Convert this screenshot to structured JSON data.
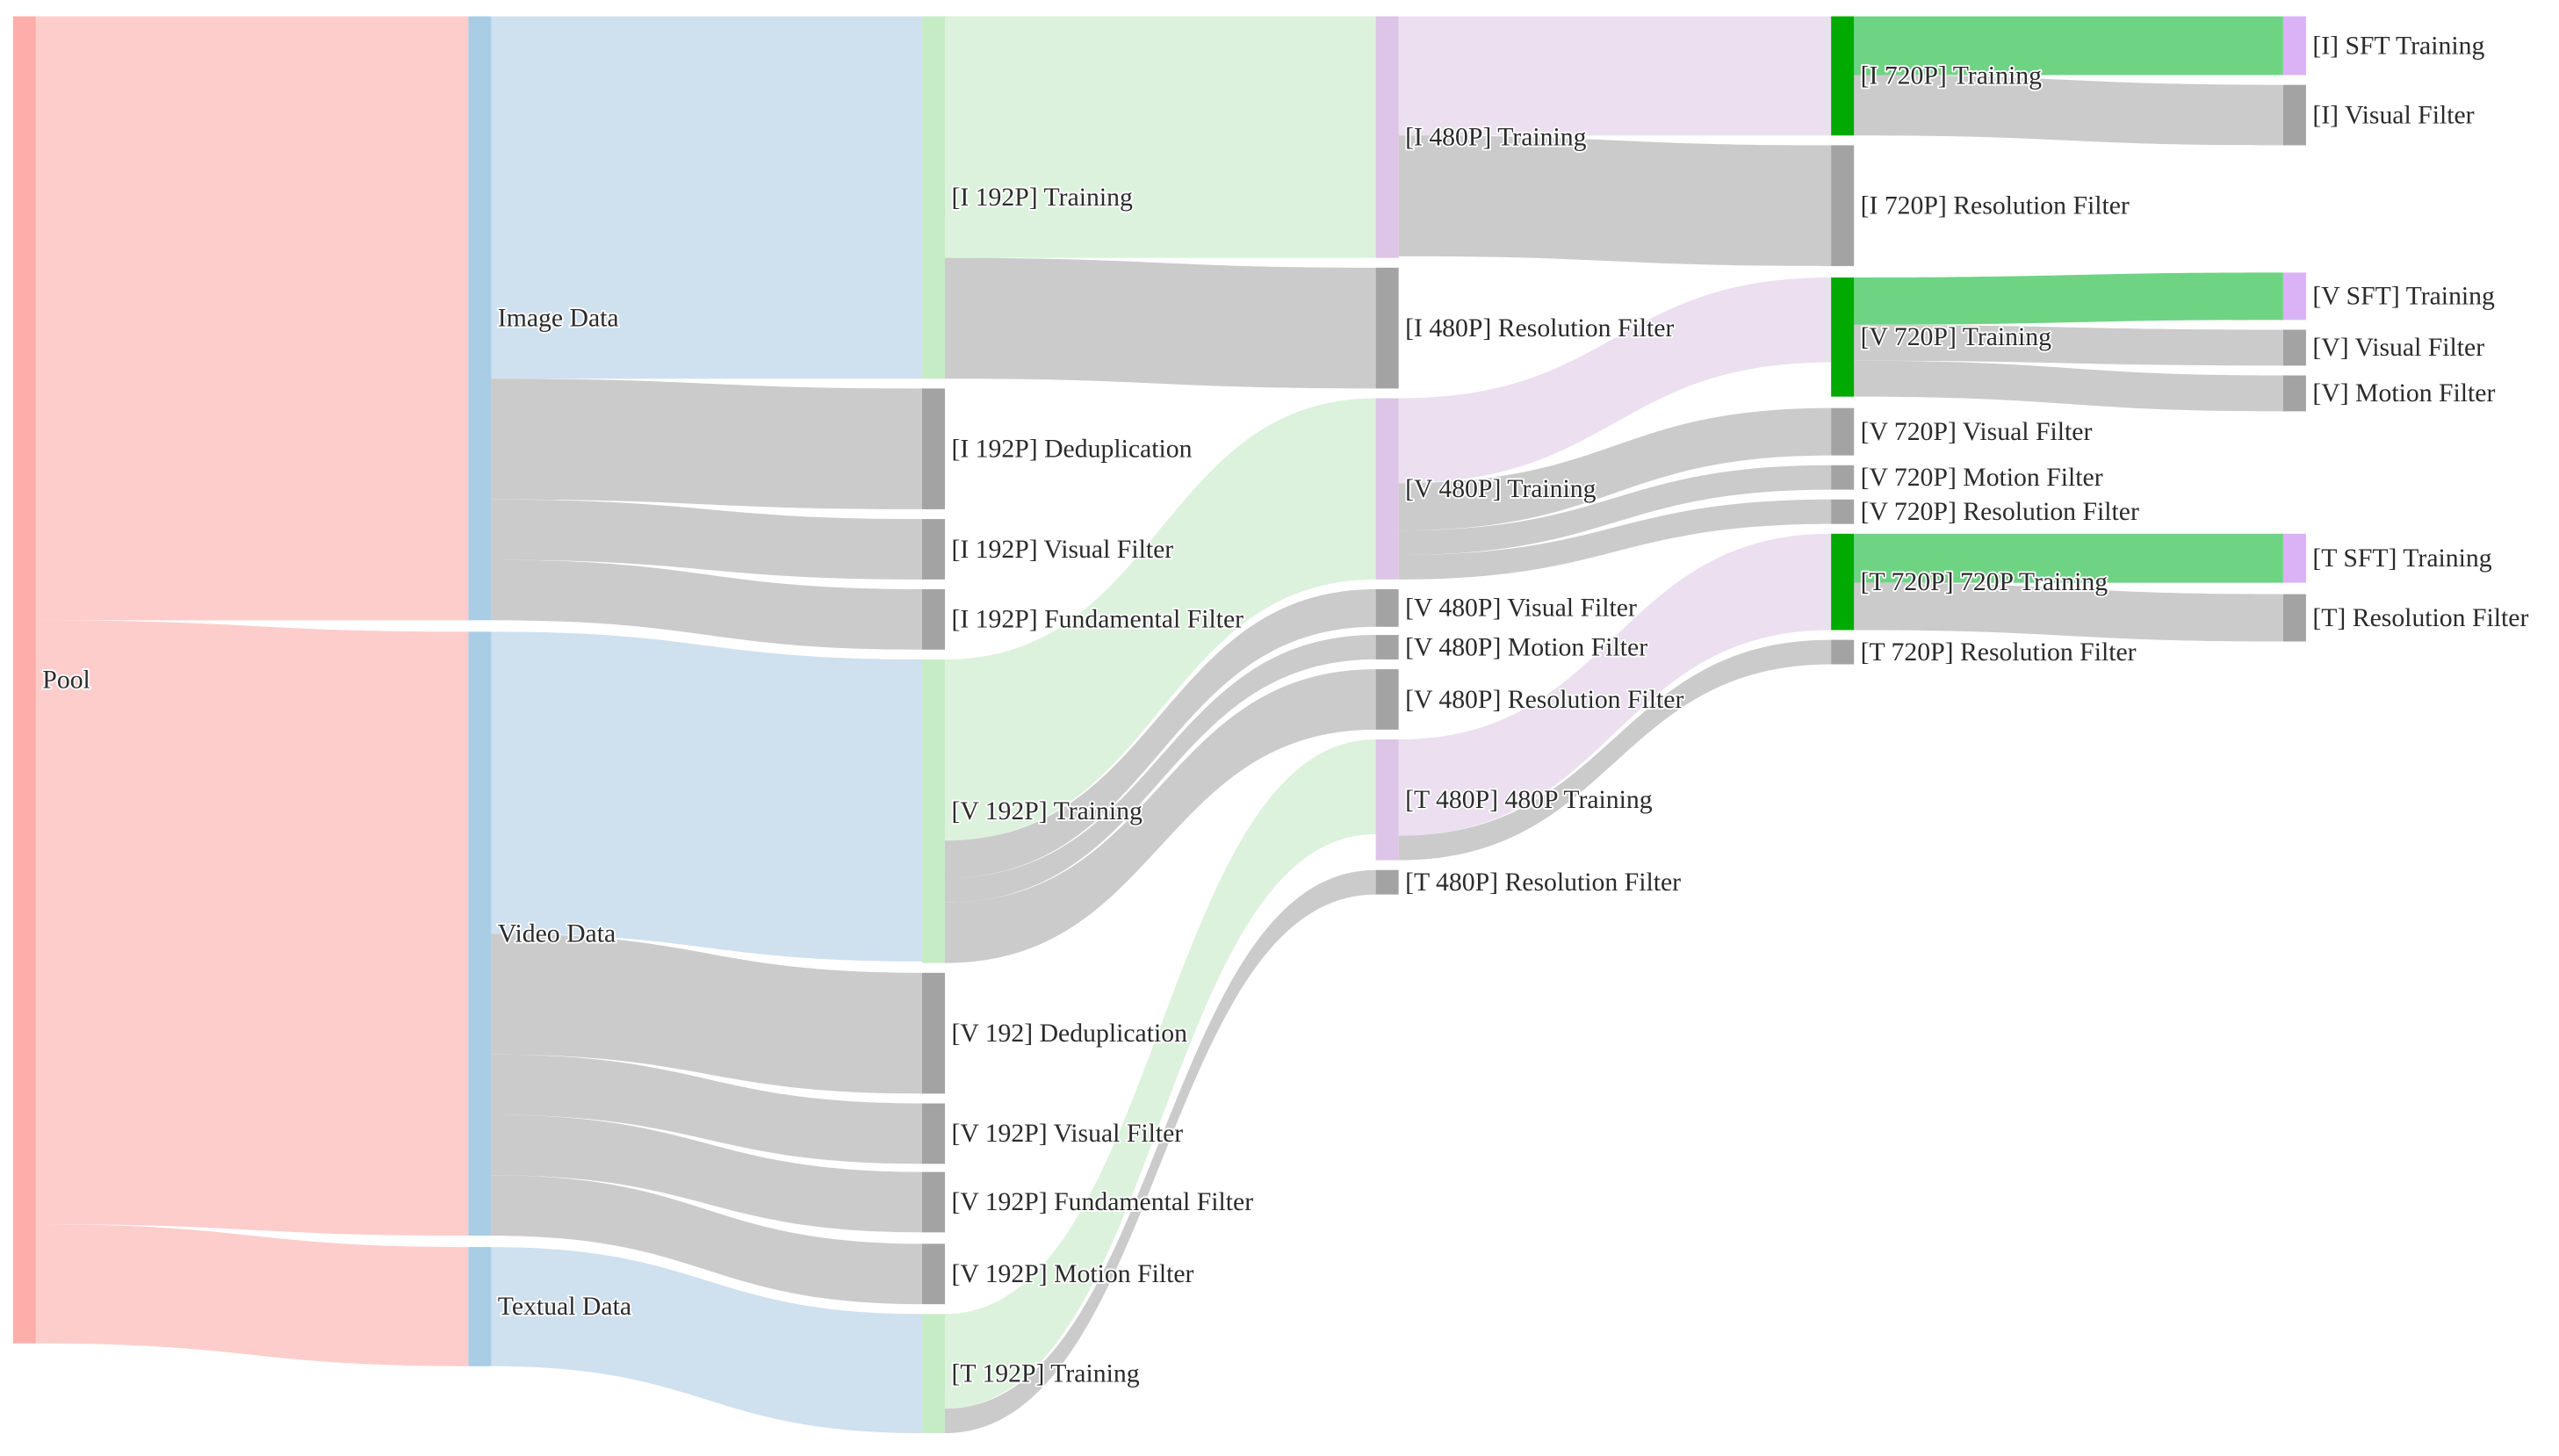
{
  "chart_data": {
    "type": "sankey",
    "nodes": [
      {
        "label": "Pool",
        "color": "#fdaeaa"
      },
      {
        "label": "Image Data",
        "color": "#a8cde5"
      },
      {
        "label": "Video Data",
        "color": "#a8cde5"
      },
      {
        "label": "Textual Data",
        "color": "#a8cde5"
      },
      {
        "label": "[I 192P] Training",
        "color": "#c6ecc6"
      },
      {
        "label": "[I 192P] Deduplication",
        "color": "#a3a3a3"
      },
      {
        "label": "[I 192P] Visual Filter",
        "color": "#a3a3a3"
      },
      {
        "label": "[I 192P] Fundamental Filter",
        "color": "#a3a3a3"
      },
      {
        "label": "[V 192P] Training",
        "color": "#c6ecc6"
      },
      {
        "label": "[V 192] Deduplication",
        "color": "#a3a3a3"
      },
      {
        "label": "[V 192P] Visual Filter",
        "color": "#a3a3a3"
      },
      {
        "label": "[V 192P] Fundamental Filter",
        "color": "#a3a3a3"
      },
      {
        "label": "[V 192P] Motion Filter",
        "color": "#a3a3a3"
      },
      {
        "label": "[T 192P] Training",
        "color": "#c6ecc6"
      },
      {
        "label": "[I 480P] Training",
        "color": "#dcc5e6"
      },
      {
        "label": "[I 480P] Resolution Filter",
        "color": "#a3a3a3"
      },
      {
        "label": "[V 480P] Training",
        "color": "#dcc5e6"
      },
      {
        "label": "[V 480P] Visual Filter",
        "color": "#a3a3a3"
      },
      {
        "label": "[V 480P] Motion Filter",
        "color": "#a3a3a3"
      },
      {
        "label": "[V 480P] Resolution Filter",
        "color": "#a3a3a3"
      },
      {
        "label": "[T 480P] 480P Training",
        "color": "#dcc5e6"
      },
      {
        "label": "[T 480P] Resolution Filter",
        "color": "#a3a3a3"
      },
      {
        "label": "[I 720P] Training",
        "color": "#00aa00"
      },
      {
        "label": "[I 720P] Resolution Filter",
        "color": "#a3a3a3"
      },
      {
        "label": "[V 720P] Training",
        "color": "#00aa00"
      },
      {
        "label": "[V 720P] Visual Filter",
        "color": "#a3a3a3"
      },
      {
        "label": "[V 720P] Motion Filter",
        "color": "#a3a3a3"
      },
      {
        "label": "[V 720P] Resolution Filter",
        "color": "#a3a3a3"
      },
      {
        "label": "[T 720P] 720P Training",
        "color": "#00aa00"
      },
      {
        "label": "[T 720P] Resolution Filter",
        "color": "#a3a3a3"
      },
      {
        "label": "[I] SFT Training",
        "color": "#dab3f7"
      },
      {
        "label": "[I] Visual Filter",
        "color": "#a3a3a3"
      },
      {
        "label": "[V SFT] Training",
        "color": "#dab3f7"
      },
      {
        "label": "[V] Visual Filter",
        "color": "#a3a3a3"
      },
      {
        "label": "[V] Motion Filter",
        "color": "#a3a3a3"
      },
      {
        "label": "[T SFT] Training",
        "color": "#dab3f7"
      },
      {
        "label": "[T] Resolution Filter",
        "color": "#a3a3a3"
      }
    ],
    "links": [
      {
        "source": 0,
        "target": 1,
        "value": 370,
        "color": "#fdcdcc"
      },
      {
        "source": 0,
        "target": 2,
        "value": 370,
        "color": "#fdcdcc"
      },
      {
        "source": 0,
        "target": 3,
        "value": 73,
        "color": "#fdcdcc"
      },
      {
        "source": 1,
        "target": 4,
        "value": 222,
        "color": "#cfe0ef"
      },
      {
        "source": 1,
        "target": 5,
        "value": 74,
        "color": "#cbcbcb"
      },
      {
        "source": 1,
        "target": 6,
        "value": 37,
        "color": "#cbcbcb"
      },
      {
        "source": 1,
        "target": 7,
        "value": 37,
        "color": "#cbcbcb"
      },
      {
        "source": 2,
        "target": 8,
        "value": 185,
        "color": "#cfe0ef"
      },
      {
        "source": 2,
        "target": 9,
        "value": 74,
        "color": "#cbcbcb"
      },
      {
        "source": 2,
        "target": 10,
        "value": 37,
        "color": "#cbcbcb"
      },
      {
        "source": 2,
        "target": 11,
        "value": 37,
        "color": "#cbcbcb"
      },
      {
        "source": 2,
        "target": 12,
        "value": 37,
        "color": "#cbcbcb"
      },
      {
        "source": 3,
        "target": 13,
        "value": 73,
        "color": "#cfe0ef"
      },
      {
        "source": 4,
        "target": 14,
        "value": 148,
        "color": "#dcf2dc"
      },
      {
        "source": 4,
        "target": 15,
        "value": 74,
        "color": "#cbcbcb"
      },
      {
        "source": 8,
        "target": 16,
        "value": 111,
        "color": "#dcf2dc"
      },
      {
        "source": 8,
        "target": 17,
        "value": 23,
        "color": "#cbcbcb"
      },
      {
        "source": 8,
        "target": 18,
        "value": 15,
        "color": "#cbcbcb"
      },
      {
        "source": 8,
        "target": 19,
        "value": 37,
        "color": "#cbcbcb"
      },
      {
        "source": 13,
        "target": 20,
        "value": 58,
        "color": "#dcf2dc"
      },
      {
        "source": 13,
        "target": 21,
        "value": 15,
        "color": "#cbcbcb"
      },
      {
        "source": 14,
        "target": 22,
        "value": 73,
        "color": "#ebdff0"
      },
      {
        "source": 14,
        "target": 23,
        "value": 74,
        "color": "#cbcbcb"
      },
      {
        "source": 16,
        "target": 24,
        "value": 52,
        "color": "#ebdff0"
      },
      {
        "source": 16,
        "target": 25,
        "value": 29,
        "color": "#cbcbcb"
      },
      {
        "source": 16,
        "target": 26,
        "value": 15,
        "color": "#cbcbcb"
      },
      {
        "source": 16,
        "target": 27,
        "value": 15,
        "color": "#cbcbcb"
      },
      {
        "source": 20,
        "target": 28,
        "value": 59,
        "color": "#ebdff0"
      },
      {
        "source": 20,
        "target": 29,
        "value": 15,
        "color": "#cbcbcb"
      },
      {
        "source": 22,
        "target": 30,
        "value": 36,
        "color": "#6fd384"
      },
      {
        "source": 22,
        "target": 31,
        "value": 37,
        "color": "#cbcbcb"
      },
      {
        "source": 24,
        "target": 32,
        "value": 29,
        "color": "#6fd384"
      },
      {
        "source": 24,
        "target": 33,
        "value": 22,
        "color": "#cbcbcb"
      },
      {
        "source": 24,
        "target": 34,
        "value": 22,
        "color": "#cbcbcb"
      },
      {
        "source": 28,
        "target": 35,
        "value": 30,
        "color": "#6fd384"
      },
      {
        "source": 28,
        "target": 36,
        "value": 29,
        "color": "#cbcbcb"
      }
    ]
  }
}
